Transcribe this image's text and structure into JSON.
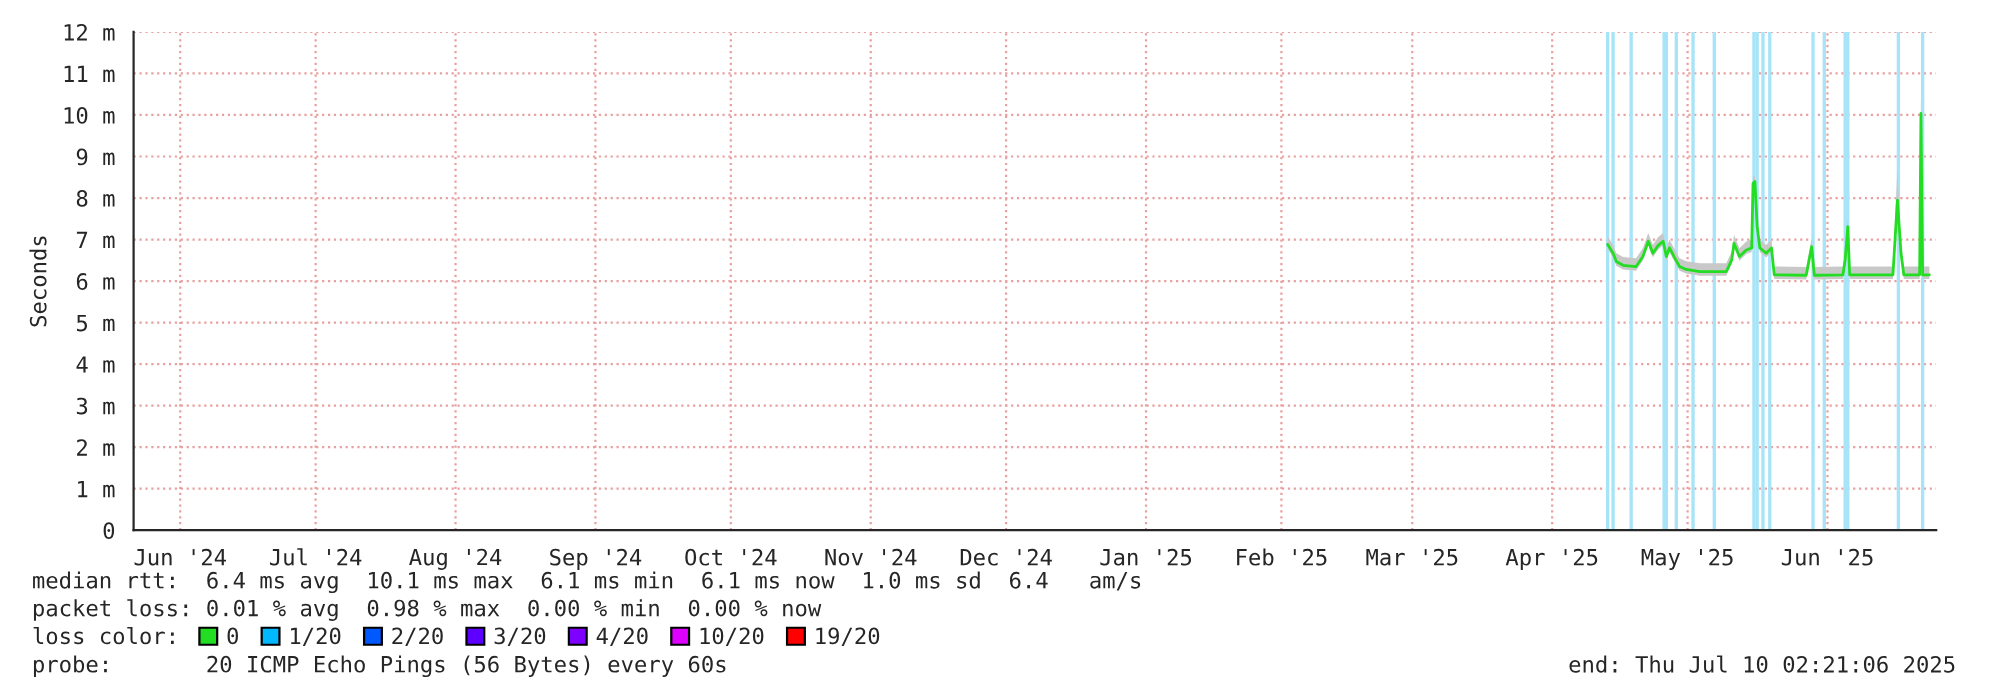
{
  "chart_data": {
    "type": "line",
    "ylabel": "Seconds",
    "legend_title": "loss color:",
    "legend": "bottom",
    "grid": true,
    "line_style": "solid",
    "marker": "none",
    "xlim": [
      "2024-06-05T16:00",
      "2025-07-10T02:00"
    ],
    "xticks": [
      {
        "value": "2024-06-16",
        "label": "Jun '24"
      },
      {
        "value": "2024-07-16",
        "label": "Jul '24"
      },
      {
        "value": "2024-08-16",
        "label": "Aug '24"
      },
      {
        "value": "2024-09-16",
        "label": "Sep '24"
      },
      {
        "value": "2024-10-16",
        "label": "Oct '24"
      },
      {
        "value": "2024-11-16",
        "label": "Nov '24"
      },
      {
        "value": "2024-12-16",
        "label": "Dec '24"
      },
      {
        "value": "2025-01-16",
        "label": "Jan '25"
      },
      {
        "value": "2025-02-15",
        "label": "Feb '25"
      },
      {
        "value": "2025-03-16",
        "label": "Mar '25"
      },
      {
        "value": "2025-04-16",
        "label": "Apr '25"
      },
      {
        "value": "2025-05-16",
        "label": "May '25"
      },
      {
        "value": "2025-06-16",
        "label": "Jun '25"
      }
    ],
    "ylim": [
      0,
      12
    ],
    "yticks": [
      0,
      {
        "value": 1,
        "label": "1 m"
      },
      {
        "value": 2,
        "label": "2 m"
      },
      {
        "value": 3,
        "label": "3 m"
      },
      {
        "value": 4,
        "label": "4 m"
      },
      {
        "value": 5,
        "label": "5 m"
      },
      {
        "value": 6,
        "label": "6 m"
      },
      {
        "value": 7,
        "label": "7 m"
      },
      {
        "value": 8,
        "label": "8 m"
      },
      {
        "value": 9,
        "label": "9 m"
      },
      {
        "value": 10,
        "label": "10 m"
      },
      {
        "value": 11,
        "label": "11 m"
      },
      {
        "value": 12,
        "label": "12 m"
      }
    ],
    "x": [
      "2025-04-28T07:00",
      "2025-04-29T12:00",
      "2025-04-30T05:00",
      "2025-05-01T17:00",
      "2025-05-04T14:00",
      "2025-05-06T02:00",
      "2025-05-07T07:00",
      "2025-05-08T07:00",
      "2025-05-09T12:00",
      "2025-05-10T14:00",
      "2025-05-11T07:00",
      "2025-05-12T00:00",
      "2025-05-13T00:00",
      "2025-05-14T05:00",
      "2025-05-15T17:00",
      "2025-05-18T17:00",
      "2025-05-24T14:00",
      "2025-05-25T19:00",
      "2025-05-26T07:00",
      "2025-05-27T12:00",
      "2025-05-29T00:00",
      "2025-05-30T05:00",
      "2025-05-30T12:00",
      "2025-05-30T22:00",
      "2025-05-31T10:00",
      "2025-06-01T00:00",
      "2025-06-02T10:00",
      "2025-06-03T14:00",
      "2025-06-04T05:00",
      "2025-06-11T07:00",
      "2025-06-12T12:00",
      "2025-06-13T02:00",
      "2025-06-19T10:00",
      "2025-06-19T22:00",
      "2025-06-20T12:00",
      "2025-06-20T22:00",
      "2025-06-30T12:00",
      "2025-07-01T12:00",
      "2025-07-02T07:00",
      "2025-07-02T22:00",
      "2025-07-06T10:00",
      "2025-07-06T17:00",
      "2025-07-07T02:00",
      "2025-07-08T14:00"
    ],
    "series": [
      {
        "name": "0",
        "color": "#22dd22",
        "values": [
          6.88,
          6.67,
          6.47,
          6.38,
          6.35,
          6.59,
          6.96,
          6.67,
          6.86,
          6.96,
          6.59,
          6.8,
          6.59,
          6.35,
          6.28,
          6.23,
          6.23,
          6.51,
          6.91,
          6.59,
          6.75,
          6.8,
          8.35,
          8.4,
          7.31,
          6.8,
          6.67,
          6.8,
          6.15,
          6.14,
          6.83,
          6.14,
          6.15,
          6.51,
          7.31,
          6.15,
          6.15,
          7.95,
          6.67,
          6.15,
          6.15,
          10.04,
          6.15,
          6.15
        ],
        "lower": [
          6.78,
          6.57,
          6.37,
          6.28,
          6.25,
          6.49,
          6.86,
          6.57,
          6.76,
          6.86,
          6.49,
          6.7,
          6.49,
          6.25,
          6.18,
          6.13,
          6.13,
          6.41,
          6.81,
          6.49,
          6.65,
          6.7,
          8.25,
          8.3,
          7.21,
          6.7,
          6.57,
          6.7,
          6.05,
          6.04,
          6.73,
          6.04,
          6.05,
          6.41,
          7.21,
          6.05,
          6.05,
          7.85,
          6.57,
          6.05,
          6.05,
          9.94,
          6.05,
          6.05
        ],
        "upper": [
          7.08,
          6.87,
          6.67,
          6.58,
          6.55,
          6.79,
          7.16,
          6.87,
          7.06,
          7.16,
          6.79,
          7.0,
          6.79,
          6.55,
          6.48,
          6.43,
          6.43,
          6.71,
          7.11,
          6.79,
          6.95,
          7.0,
          8.55,
          8.5,
          7.51,
          7.0,
          6.87,
          7.0,
          6.35,
          6.34,
          7.03,
          6.34,
          6.35,
          6.71,
          7.51,
          6.35,
          6.35,
          8.7,
          6.87,
          6.35,
          6.35,
          10.4,
          6.35,
          6.35
        ]
      },
      {
        "name": "1/20",
        "color": "#00b8ff",
        "values": [
          null,
          null,
          null,
          null,
          null,
          null,
          null,
          null,
          null,
          null,
          null,
          null,
          null,
          null,
          null,
          null,
          null,
          null,
          null,
          null,
          null,
          null,
          null,
          null,
          null,
          null,
          null,
          null,
          null,
          null,
          null,
          null,
          null,
          null,
          null,
          null,
          null,
          null,
          null,
          null,
          null,
          null,
          null,
          null
        ]
      },
      {
        "name": "2/20",
        "color": "#0059ff",
        "values": [
          null,
          null,
          null,
          null,
          null,
          null,
          null,
          null,
          null,
          null,
          null,
          null,
          null,
          null,
          null,
          null,
          null,
          null,
          null,
          null,
          null,
          null,
          null,
          null,
          null,
          null,
          null,
          null,
          null,
          null,
          null,
          null,
          null,
          null,
          null,
          null,
          null,
          null,
          null,
          null,
          null,
          null,
          null,
          null
        ]
      },
      {
        "name": "3/20",
        "color": "#5e00ff",
        "values": [
          null,
          null,
          null,
          null,
          null,
          null,
          null,
          null,
          null,
          null,
          null,
          null,
          null,
          null,
          null,
          null,
          null,
          null,
          null,
          null,
          null,
          null,
          null,
          null,
          null,
          null,
          null,
          null,
          null,
          null,
          null,
          null,
          null,
          null,
          null,
          null,
          null,
          null,
          null,
          null,
          null,
          null,
          null,
          null
        ]
      },
      {
        "name": "4/20",
        "color": "#7e00ff",
        "values": [
          null,
          null,
          null,
          null,
          null,
          null,
          null,
          null,
          null,
          null,
          null,
          null,
          null,
          null,
          null,
          null,
          null,
          null,
          null,
          null,
          null,
          null,
          null,
          null,
          null,
          null,
          null,
          null,
          null,
          null,
          null,
          null,
          null,
          null,
          null,
          null,
          null,
          null,
          null,
          null,
          null,
          null,
          null,
          null
        ]
      },
      {
        "name": "10/20",
        "color": "#dd00ff",
        "values": [
          null,
          null,
          null,
          null,
          null,
          null,
          null,
          null,
          null,
          null,
          null,
          null,
          null,
          null,
          null,
          null,
          null,
          null,
          null,
          null,
          null,
          null,
          null,
          null,
          null,
          null,
          null,
          null,
          null,
          null,
          null,
          null,
          null,
          null,
          null,
          null,
          null,
          null,
          null,
          null,
          null,
          null,
          null,
          null
        ]
      },
      {
        "name": "19/20",
        "color": "#ff0000",
        "values": [
          null,
          null,
          null,
          null,
          null,
          null,
          null,
          null,
          null,
          null,
          null,
          null,
          null,
          null,
          null,
          null,
          null,
          null,
          null,
          null,
          null,
          null,
          null,
          null,
          null,
          null,
          null,
          null,
          null,
          null,
          null,
          null,
          null,
          null,
          null,
          null,
          null,
          null,
          null,
          null,
          null,
          null,
          null,
          null
        ]
      }
    ],
    "ref_lines": [
      {
        "axis": "x",
        "value": "2025-04-28T07:00",
        "color": "#a8e4f8"
      },
      {
        "axis": "x",
        "value": "2025-04-29T12:00",
        "color": "#a8e4f8"
      },
      {
        "axis": "x",
        "value": "2025-05-03T12:00",
        "color": "#a8e4f8"
      },
      {
        "axis": "x",
        "value": "2025-05-10T19:00",
        "color": "#a8e4f8"
      },
      {
        "axis": "x",
        "value": "2025-05-11T07:00",
        "color": "#a8e4f8"
      },
      {
        "axis": "x",
        "value": "2025-05-13T12:00",
        "color": "#a8e4f8"
      },
      {
        "axis": "x",
        "value": "2025-05-17T05:00",
        "color": "#a8e4f8"
      },
      {
        "axis": "x",
        "value": "2025-05-21T22:00",
        "color": "#a8e4f8"
      },
      {
        "axis": "x",
        "value": "2025-05-30T17:00",
        "color": "#a8e4f8"
      },
      {
        "axis": "x",
        "value": "2025-05-31T10:00",
        "color": "#a8e4f8"
      },
      {
        "axis": "x",
        "value": "2025-06-01T17:00",
        "color": "#a8e4f8"
      },
      {
        "axis": "x",
        "value": "2025-06-03T05:00",
        "color": "#a8e4f8"
      },
      {
        "axis": "x",
        "value": "2025-06-12T19:00",
        "color": "#a8e4f8"
      },
      {
        "axis": "x",
        "value": "2025-06-15T07:00",
        "color": "#a8e4f8"
      },
      {
        "axis": "x",
        "value": "2025-06-19T22:00",
        "color": "#a8e4f8"
      },
      {
        "axis": "x",
        "value": "2025-06-20T12:00",
        "color": "#a8e4f8"
      },
      {
        "axis": "x",
        "value": "2025-07-01T17:00",
        "color": "#a8e4f8"
      },
      {
        "axis": "x",
        "value": "2025-07-07T02:00",
        "color": "#a8e4f8"
      }
    ],
    "annotations": [
      "median rtt:  6.4 ms avg  10.1 ms max  6.1 ms min  6.1 ms now  1.0 ms sd  6.4   am/s",
      "packet loss: 0.01 % avg  0.98 % max  0.00 % min  0.00 % now",
      "probe:       20 ICMP Echo Pings (56 Bytes) every 60s",
      "end: Thu Jul 10 02:21:06 2025"
    ]
  }
}
